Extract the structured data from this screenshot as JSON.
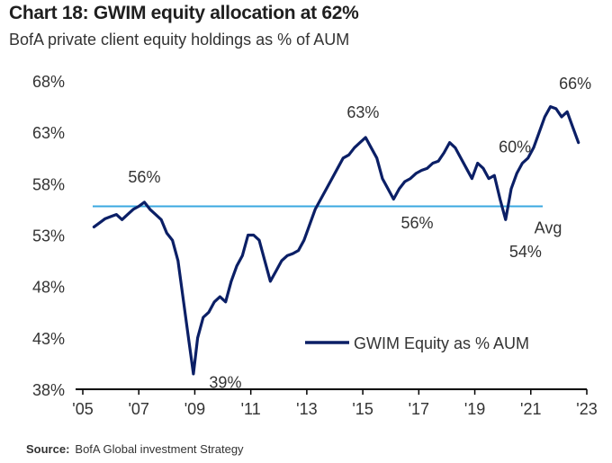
{
  "header": {
    "title": "Chart 18: GWIM equity allocation at 62%",
    "subtitle": "BofA private client equity holdings as % of AUM"
  },
  "footer": {
    "source_label": "Source:",
    "source_text": "BofA Global investment Strategy"
  },
  "colors": {
    "series": "#0b1f66",
    "average": "#3aa8e0",
    "axis": "#000000",
    "text": "#333333"
  },
  "chart_data": {
    "type": "line",
    "ylim": [
      38,
      68
    ],
    "xlim": [
      2005,
      2023
    ],
    "y_ticks": [
      {
        "value": 68,
        "label": "68%"
      },
      {
        "value": 63,
        "label": "63%"
      },
      {
        "value": 58,
        "label": "58%"
      },
      {
        "value": 53,
        "label": "53%"
      },
      {
        "value": 48,
        "label": "48%"
      },
      {
        "value": 43,
        "label": "43%"
      },
      {
        "value": 38,
        "label": "38%"
      }
    ],
    "x_ticks": [
      {
        "value": 2005,
        "label": "'05"
      },
      {
        "value": 2007,
        "label": "'07"
      },
      {
        "value": 2009,
        "label": "'09"
      },
      {
        "value": 2011,
        "label": "'11"
      },
      {
        "value": 2013,
        "label": "'13"
      },
      {
        "value": 2015,
        "label": "'15"
      },
      {
        "value": 2017,
        "label": "'17"
      },
      {
        "value": 2019,
        "label": "'19"
      },
      {
        "value": 2021,
        "label": "'21"
      },
      {
        "value": 2023,
        "label": "'23"
      }
    ],
    "legend": {
      "label": "GWIM Equity as % AUM",
      "position": "bottom-right"
    },
    "average": {
      "value": 55.8,
      "label": "Avg"
    },
    "annotations": [
      {
        "x": 2007.2,
        "y": 56,
        "text": "56%"
      },
      {
        "x": 2009.0,
        "y": 39,
        "text": "39%"
      },
      {
        "x": 2015.2,
        "y": 63,
        "text": "63%"
      },
      {
        "x": 2016.3,
        "y": 56,
        "text": "56%"
      },
      {
        "x": 2020.2,
        "y": 54,
        "text": "54%"
      },
      {
        "x": 2020.4,
        "y": 60,
        "text": "60%"
      },
      {
        "x": 2022.2,
        "y": 66,
        "text": "66%"
      }
    ],
    "series": [
      {
        "name": "GWIM Equity as % AUM",
        "x": [
          2005.4,
          2005.6,
          2005.8,
          2006.0,
          2006.2,
          2006.4,
          2006.6,
          2006.8,
          2007.0,
          2007.2,
          2007.4,
          2007.6,
          2007.8,
          2008.0,
          2008.2,
          2008.4,
          2008.6,
          2008.8,
          2008.95,
          2009.1,
          2009.3,
          2009.5,
          2009.7,
          2009.9,
          2010.1,
          2010.3,
          2010.5,
          2010.7,
          2010.9,
          2011.1,
          2011.3,
          2011.5,
          2011.7,
          2011.9,
          2012.1,
          2012.3,
          2012.5,
          2012.7,
          2012.9,
          2013.1,
          2013.3,
          2013.5,
          2013.7,
          2013.9,
          2014.1,
          2014.3,
          2014.5,
          2014.7,
          2014.9,
          2015.1,
          2015.3,
          2015.5,
          2015.7,
          2015.9,
          2016.1,
          2016.3,
          2016.5,
          2016.7,
          2016.9,
          2017.1,
          2017.3,
          2017.5,
          2017.7,
          2017.9,
          2018.1,
          2018.3,
          2018.5,
          2018.7,
          2018.9,
          2019.1,
          2019.3,
          2019.5,
          2019.7,
          2019.9,
          2020.1,
          2020.2,
          2020.3,
          2020.5,
          2020.7,
          2020.9,
          2021.1,
          2021.3,
          2021.5,
          2021.7,
          2021.9,
          2022.1,
          2022.3,
          2022.5,
          2022.7
        ],
        "values": [
          53.8,
          54.2,
          54.6,
          54.8,
          55.0,
          54.5,
          55.0,
          55.5,
          55.8,
          56.2,
          55.5,
          55.0,
          54.5,
          53.2,
          52.5,
          50.5,
          46.5,
          42.5,
          39.5,
          43.0,
          45.0,
          45.5,
          46.5,
          47.0,
          46.5,
          48.5,
          50.0,
          51.0,
          53.0,
          53.0,
          52.5,
          50.5,
          48.5,
          49.5,
          50.5,
          51.0,
          51.2,
          51.5,
          52.5,
          54.0,
          55.5,
          56.5,
          57.5,
          58.5,
          59.5,
          60.5,
          60.8,
          61.5,
          62.0,
          62.5,
          61.5,
          60.5,
          58.5,
          57.5,
          56.5,
          57.5,
          58.2,
          58.5,
          59.0,
          59.3,
          59.5,
          60.0,
          60.2,
          61.0,
          62.0,
          61.5,
          60.5,
          59.5,
          58.5,
          60.0,
          59.5,
          58.5,
          58.8,
          56.5,
          54.5,
          56.0,
          57.5,
          59.0,
          60.0,
          60.5,
          61.5,
          63.0,
          64.5,
          65.5,
          65.3,
          64.5,
          65.0,
          63.5,
          62.0
        ]
      }
    ]
  }
}
